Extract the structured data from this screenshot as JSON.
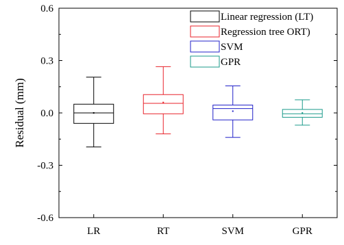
{
  "chart_data": {
    "type": "box",
    "xlabel": "",
    "ylabel": "Residual (mm)",
    "ylim": [
      -0.6,
      0.6
    ],
    "yticks": [
      -0.6,
      -0.3,
      0.0,
      0.3,
      0.6
    ],
    "ytick_labels": [
      "-0.6",
      "-0.3",
      "0.0",
      "0.3",
      "0.6"
    ],
    "categories": [
      "LR",
      "RT",
      "SVM",
      "GPR"
    ],
    "legend_position": "top-right",
    "grid": false,
    "series": [
      {
        "name": "Linear regression (LT)",
        "category": "LR",
        "color": "#000000",
        "whisker_low": -0.195,
        "q1": -0.06,
        "median": 0.0,
        "mean": 0.0,
        "q3": 0.05,
        "whisker_high": 0.205
      },
      {
        "name": "Regression tree ORT)",
        "category": "RT",
        "color": "#e8222a",
        "whisker_low": -0.12,
        "q1": -0.005,
        "median": 0.055,
        "mean": 0.06,
        "q3": 0.105,
        "whisker_high": 0.265
      },
      {
        "name": "SVM",
        "category": "SVM",
        "color": "#2020c8",
        "whisker_low": -0.14,
        "q1": -0.04,
        "median": 0.025,
        "mean": 0.01,
        "q3": 0.045,
        "whisker_high": 0.155
      },
      {
        "name": "GPR",
        "category": "GPR",
        "color": "#1a9a8a",
        "whisker_low": -0.07,
        "q1": -0.025,
        "median": -0.005,
        "mean": 0.0,
        "q3": 0.02,
        "whisker_high": 0.075
      }
    ]
  }
}
